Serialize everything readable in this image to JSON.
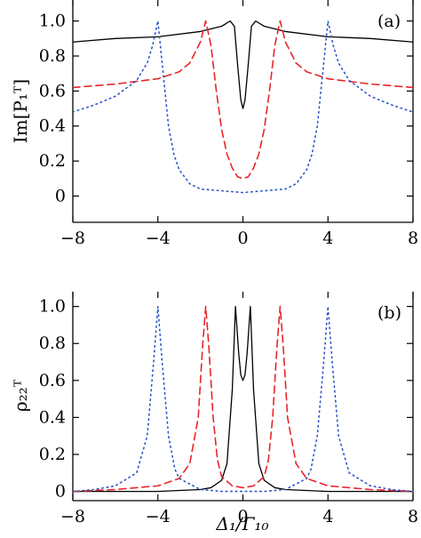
{
  "chart_data": [
    {
      "type": "line",
      "panel_label": "(a)",
      "ylabel": "Im[P₁ᵀ]",
      "xlim": [
        -8,
        8
      ],
      "ylim": [
        -0.15,
        1.12
      ],
      "xticks": [
        -8,
        -4,
        0,
        4,
        8
      ],
      "yticks": [
        0,
        0.2,
        0.4,
        0.6,
        0.8,
        1.0
      ],
      "ytick_labels": [
        "0",
        "0.2",
        "0.4",
        "0.6",
        "0.8",
        "1.0"
      ],
      "series": [
        {
          "style": "solid",
          "color": "#000000",
          "x": [
            -8,
            -6,
            -4,
            -2,
            -1,
            -0.6,
            -0.4,
            -0.25,
            -0.1,
            0,
            0.1,
            0.25,
            0.4,
            0.6,
            1,
            2,
            4,
            6,
            8
          ],
          "y": [
            0.88,
            0.9,
            0.91,
            0.94,
            0.97,
            1.0,
            0.97,
            0.75,
            0.55,
            0.5,
            0.55,
            0.75,
            0.97,
            1.0,
            0.97,
            0.94,
            0.91,
            0.9,
            0.88
          ]
        },
        {
          "style": "dashed",
          "color": "#e8252a",
          "x": [
            -8,
            -6,
            -4,
            -3,
            -2.5,
            -2,
            -1.75,
            -1.5,
            -1.25,
            -1,
            -0.75,
            -0.5,
            -0.25,
            0,
            0.25,
            0.5,
            0.75,
            1,
            1.25,
            1.5,
            1.75,
            2,
            2.5,
            3,
            4,
            6,
            8
          ],
          "y": [
            0.62,
            0.64,
            0.67,
            0.71,
            0.76,
            0.88,
            1.0,
            0.86,
            0.6,
            0.38,
            0.24,
            0.16,
            0.11,
            0.1,
            0.11,
            0.16,
            0.24,
            0.38,
            0.6,
            0.86,
            1.0,
            0.88,
            0.76,
            0.71,
            0.67,
            0.64,
            0.62
          ]
        },
        {
          "style": "dotted",
          "color": "#2f56c8",
          "x": [
            -8,
            -7,
            -6,
            -5,
            -4.5,
            -4.25,
            -4,
            -3.75,
            -3.5,
            -3.25,
            -3,
            -2.5,
            -2,
            -1,
            0,
            1,
            2,
            2.5,
            3,
            3.25,
            3.5,
            3.75,
            4,
            4.25,
            4.5,
            5,
            6,
            7,
            8
          ],
          "y": [
            0.48,
            0.52,
            0.57,
            0.66,
            0.76,
            0.86,
            1.0,
            0.7,
            0.4,
            0.24,
            0.15,
            0.07,
            0.04,
            0.03,
            0.02,
            0.03,
            0.04,
            0.07,
            0.15,
            0.24,
            0.4,
            0.7,
            1.0,
            0.86,
            0.76,
            0.66,
            0.57,
            0.52,
            0.48
          ]
        }
      ]
    },
    {
      "type": "line",
      "panel_label": "(b)",
      "ylabel": "ρ₂₂ᵀ",
      "xlabel": "Δ₁/Γ₁₀",
      "xlim": [
        -8,
        8
      ],
      "ylim": [
        -0.05,
        1.08
      ],
      "xticks": [
        -8,
        -4,
        0,
        4,
        8
      ],
      "yticks": [
        0,
        0.2,
        0.4,
        0.6,
        0.8,
        1.0
      ],
      "ytick_labels": [
        "0",
        "0.2",
        "0.4",
        "0.6",
        "0.8",
        "1.0"
      ],
      "series": [
        {
          "style": "solid",
          "color": "#000000",
          "x": [
            -8,
            -4,
            -2,
            -1.5,
            -1,
            -0.75,
            -0.5,
            -0.35,
            -0.2,
            -0.1,
            0,
            0.1,
            0.2,
            0.35,
            0.5,
            0.75,
            1,
            1.5,
            2,
            4,
            8
          ],
          "y": [
            0.0,
            0.0,
            0.01,
            0.02,
            0.06,
            0.15,
            0.55,
            1.0,
            0.75,
            0.63,
            0.6,
            0.63,
            0.75,
            1.0,
            0.55,
            0.15,
            0.06,
            0.02,
            0.01,
            0.0,
            0.0
          ]
        },
        {
          "style": "dashed",
          "color": "#e8252a",
          "x": [
            -8,
            -6,
            -4,
            -3,
            -2.5,
            -2.1,
            -1.9,
            -1.75,
            -1.6,
            -1.4,
            -1.2,
            -1,
            -0.5,
            0,
            0.5,
            1,
            1.2,
            1.4,
            1.6,
            1.75,
            1.9,
            2.1,
            2.5,
            3,
            4,
            6,
            8
          ],
          "y": [
            0.0,
            0.01,
            0.03,
            0.07,
            0.15,
            0.4,
            0.78,
            1.0,
            0.78,
            0.4,
            0.17,
            0.08,
            0.03,
            0.02,
            0.03,
            0.08,
            0.17,
            0.4,
            0.78,
            1.0,
            0.78,
            0.4,
            0.15,
            0.07,
            0.03,
            0.01,
            0.0
          ]
        },
        {
          "style": "dotted",
          "color": "#2f56c8",
          "x": [
            -8,
            -7,
            -6,
            -5,
            -4.5,
            -4.2,
            -4,
            -3.8,
            -3.5,
            -3.2,
            -3,
            -2,
            -1,
            0,
            1,
            2,
            3,
            3.2,
            3.5,
            3.8,
            4,
            4.2,
            4.5,
            5,
            6,
            7,
            8
          ],
          "y": [
            0.0,
            0.01,
            0.03,
            0.1,
            0.3,
            0.7,
            1.0,
            0.7,
            0.3,
            0.12,
            0.07,
            0.01,
            0.0,
            0.0,
            0.0,
            0.01,
            0.07,
            0.12,
            0.3,
            0.7,
            1.0,
            0.7,
            0.3,
            0.1,
            0.03,
            0.01,
            0.0
          ]
        }
      ]
    }
  ]
}
